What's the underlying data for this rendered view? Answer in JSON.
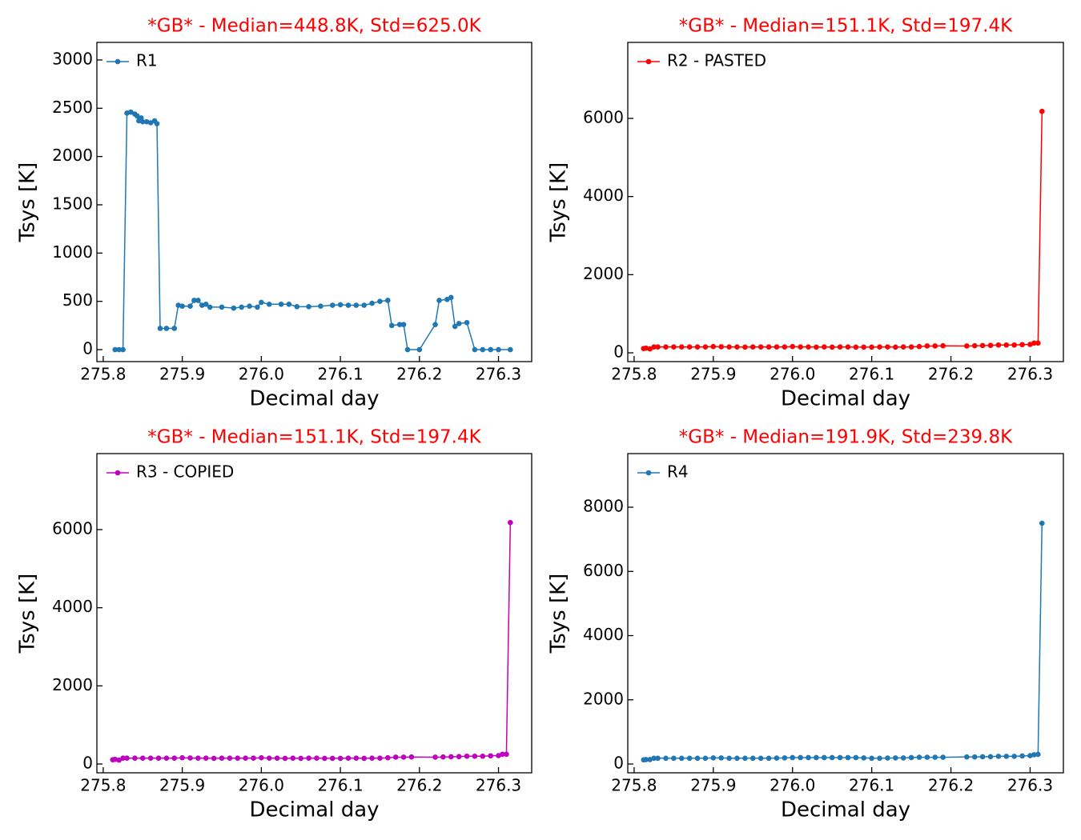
{
  "chart_data": [
    {
      "type": "line",
      "title": "*GB* - Median=448.8K, Std=625.0K",
      "title_color": "#ff0000",
      "xlabel": "Decimal day",
      "ylabel": "Tsys [K]",
      "legend": "upper left",
      "x": [
        275.815,
        275.82,
        275.825,
        275.83,
        275.835,
        275.84,
        275.843,
        275.845,
        275.848,
        275.85,
        275.855,
        275.86,
        275.865,
        275.868,
        275.872,
        275.88,
        275.89,
        275.895,
        275.9,
        275.91,
        275.915,
        275.92,
        275.925,
        275.93,
        275.935,
        275.95,
        275.965,
        275.975,
        275.985,
        275.995,
        276.0,
        276.01,
        276.025,
        276.035,
        276.045,
        276.06,
        276.075,
        276.09,
        276.1,
        276.11,
        276.12,
        276.13,
        276.14,
        276.15,
        276.16,
        276.165,
        276.175,
        276.18,
        276.185,
        276.2,
        276.22,
        276.225,
        276.235,
        276.24,
        276.245,
        276.25,
        276.26,
        276.27,
        276.28,
        276.29,
        276.3,
        276.315
      ],
      "series": [
        {
          "name": "R1",
          "color": "#1f77b4",
          "values": [
            0,
            0,
            0,
            2450,
            2460,
            2440,
            2420,
            2370,
            2400,
            2360,
            2360,
            2350,
            2370,
            2340,
            220,
            220,
            220,
            460,
            450,
            450,
            510,
            510,
            460,
            470,
            440,
            440,
            430,
            440,
            450,
            440,
            490,
            470,
            470,
            470,
            445,
            445,
            450,
            460,
            465,
            460,
            460,
            460,
            480,
            500,
            510,
            250,
            260,
            260,
            0,
            0,
            260,
            510,
            520,
            540,
            240,
            270,
            280,
            0,
            0,
            0,
            0,
            0
          ]
        }
      ],
      "xlim": [
        275.792,
        276.342
      ],
      "ylim": [
        -124,
        3182
      ],
      "xticks": [
        275.8,
        275.9,
        {
          "value": 276,
          "label": "276.0"
        },
        276.1,
        276.2,
        276.3
      ],
      "yticks": [
        0,
        500,
        1000,
        1500,
        2000,
        2500,
        3000
      ]
    },
    {
      "type": "line",
      "title": "*GB* - Median=151.1K, Std=197.4K",
      "title_color": "#ff0000",
      "xlabel": "Decimal day",
      "ylabel": "Tsys [K]",
      "legend": "upper left",
      "x": [
        275.812,
        275.815,
        275.82,
        275.825,
        275.83,
        275.84,
        275.85,
        275.86,
        275.87,
        275.88,
        275.89,
        275.9,
        275.91,
        275.92,
        275.93,
        275.94,
        275.95,
        275.96,
        275.97,
        275.98,
        275.99,
        276.0,
        276.01,
        276.02,
        276.03,
        276.04,
        276.05,
        276.06,
        276.07,
        276.08,
        276.09,
        276.1,
        276.11,
        276.12,
        276.13,
        276.14,
        276.15,
        276.16,
        276.17,
        276.18,
        276.19,
        276.22,
        276.23,
        276.24,
        276.25,
        276.26,
        276.27,
        276.28,
        276.29,
        276.3,
        276.305,
        276.31,
        276.315
      ],
      "series": [
        {
          "name": "R2 - PASTED",
          "color": "#ff0000",
          "values": [
            110,
            120,
            100,
            150,
            150,
            150,
            150,
            150,
            150,
            150,
            150,
            160,
            155,
            150,
            150,
            145,
            150,
            150,
            150,
            150,
            150,
            160,
            150,
            150,
            145,
            150,
            145,
            150,
            150,
            145,
            145,
            145,
            150,
            150,
            145,
            150,
            150,
            160,
            175,
            175,
            180,
            175,
            180,
            185,
            190,
            200,
            200,
            200,
            210,
            215,
            250,
            250,
            6180
          ]
        }
      ],
      "xlim": [
        275.792,
        276.342
      ],
      "ylim": [
        -225,
        7945
      ],
      "xticks": [
        275.8,
        275.9,
        {
          "value": 276,
          "label": "276.0"
        },
        276.1,
        276.2,
        276.3
      ],
      "yticks": [
        0,
        2000,
        4000,
        6000
      ]
    },
    {
      "type": "line",
      "title": "*GB* - Median=151.1K, Std=197.4K",
      "title_color": "#ff0000",
      "xlabel": "Decimal day",
      "ylabel": "Tsys [K]",
      "legend": "upper left",
      "x": [
        275.812,
        275.815,
        275.82,
        275.825,
        275.83,
        275.84,
        275.85,
        275.86,
        275.87,
        275.88,
        275.89,
        275.9,
        275.91,
        275.92,
        275.93,
        275.94,
        275.95,
        275.96,
        275.97,
        275.98,
        275.99,
        276.0,
        276.01,
        276.02,
        276.03,
        276.04,
        276.05,
        276.06,
        276.07,
        276.08,
        276.09,
        276.1,
        276.11,
        276.12,
        276.13,
        276.14,
        276.15,
        276.16,
        276.17,
        276.18,
        276.19,
        276.22,
        276.23,
        276.24,
        276.25,
        276.26,
        276.27,
        276.28,
        276.29,
        276.3,
        276.305,
        276.31,
        276.315
      ],
      "series": [
        {
          "name": "R3 - COPIED",
          "color": "#bf00bf",
          "values": [
            110,
            120,
            100,
            150,
            150,
            150,
            150,
            150,
            150,
            150,
            150,
            160,
            155,
            150,
            150,
            145,
            150,
            150,
            150,
            150,
            150,
            160,
            150,
            150,
            145,
            150,
            145,
            150,
            150,
            145,
            145,
            145,
            150,
            150,
            145,
            150,
            150,
            160,
            175,
            175,
            180,
            175,
            180,
            185,
            190,
            200,
            200,
            200,
            210,
            215,
            250,
            250,
            6180
          ]
        }
      ],
      "xlim": [
        275.792,
        276.342
      ],
      "ylim": [
        -225,
        7945
      ],
      "xticks": [
        275.8,
        275.9,
        {
          "value": 276,
          "label": "276.0"
        },
        276.1,
        276.2,
        276.3
      ],
      "yticks": [
        0,
        2000,
        4000,
        6000
      ]
    },
    {
      "type": "line",
      "title": "*GB* - Median=191.9K, Std=239.8K",
      "title_color": "#ff0000",
      "xlabel": "Decimal day",
      "ylabel": "Tsys [K]",
      "legend": "upper left",
      "x": [
        275.812,
        275.815,
        275.82,
        275.825,
        275.83,
        275.84,
        275.85,
        275.86,
        275.87,
        275.88,
        275.89,
        275.9,
        275.91,
        275.92,
        275.93,
        275.94,
        275.95,
        275.96,
        275.97,
        275.98,
        275.99,
        276.0,
        276.01,
        276.02,
        276.03,
        276.04,
        276.05,
        276.06,
        276.07,
        276.08,
        276.09,
        276.1,
        276.11,
        276.12,
        276.13,
        276.14,
        276.15,
        276.16,
        276.17,
        276.18,
        276.19,
        276.22,
        276.23,
        276.24,
        276.25,
        276.26,
        276.27,
        276.28,
        276.29,
        276.3,
        276.305,
        276.31,
        276.315
      ],
      "series": [
        {
          "name": "R4",
          "color": "#1f77b4",
          "values": [
            130,
            140,
            140,
            180,
            180,
            180,
            180,
            180,
            180,
            180,
            180,
            190,
            190,
            180,
            180,
            180,
            180,
            180,
            180,
            185,
            190,
            200,
            200,
            200,
            200,
            200,
            200,
            200,
            200,
            200,
            190,
            180,
            180,
            185,
            190,
            190,
            200,
            210,
            210,
            210,
            210,
            220,
            220,
            225,
            230,
            240,
            240,
            240,
            250,
            260,
            290,
            300,
            7500
          ]
        }
      ],
      "xlim": [
        275.792,
        276.342
      ],
      "ylim": [
        -274,
        9670
      ],
      "xticks": [
        275.8,
        275.9,
        {
          "value": 276,
          "label": "276.0"
        },
        276.1,
        276.2,
        276.3
      ],
      "yticks": [
        0,
        2000,
        4000,
        6000,
        8000
      ]
    }
  ]
}
